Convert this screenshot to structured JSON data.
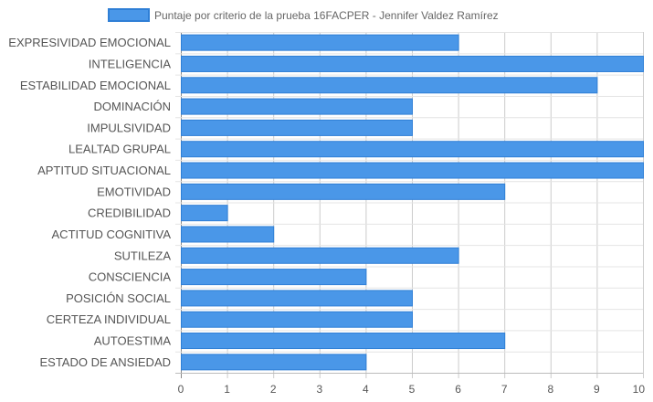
{
  "chart_data": {
    "type": "bar",
    "orientation": "horizontal",
    "categories": [
      "EXPRESIVIDAD EMOCIONAL",
      "INTELIGENCIA",
      "ESTABILIDAD EMOCIONAL",
      "DOMINACIÓN",
      "IMPULSIVIDAD",
      "LEALTAD GRUPAL",
      "APTITUD SITUACIONAL",
      "EMOTIVIDAD",
      "CREDIBILIDAD",
      "ACTITUD COGNITIVA",
      "SUTILEZA",
      "CONSCIENCIA",
      "POSICIÓN SOCIAL",
      "CERTEZA INDIVIDUAL",
      "AUTOESTIMA",
      "ESTADO DE ANSIEDAD"
    ],
    "series": [
      {
        "name": "Puntaje por criterio de la prueba 16FACPER - Jennifer Valdez Ramírez",
        "values": [
          6,
          10,
          9,
          5,
          5,
          10,
          10,
          7,
          1,
          2,
          6,
          4,
          5,
          5,
          7,
          4
        ],
        "color": "#4a97e8",
        "border_color": "#2f7fd6"
      }
    ],
    "xlim": [
      0,
      10
    ],
    "x_ticks": [
      "0",
      "1",
      "2",
      "3",
      "4",
      "5",
      "6",
      "7",
      "8",
      "9",
      "10"
    ],
    "grid": true,
    "legend_position": "top"
  }
}
